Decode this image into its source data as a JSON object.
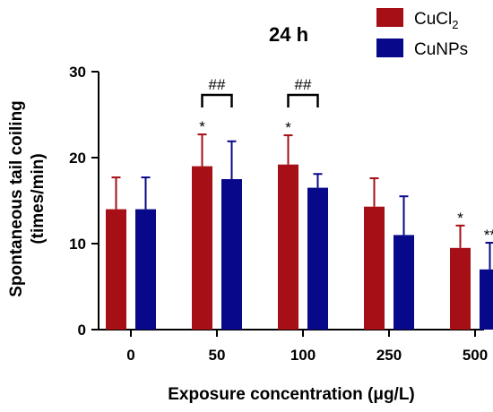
{
  "chart_data": {
    "type": "bar",
    "title": "24 h",
    "xlabel": "Exposure concentration (μg/L)",
    "ylabel_line1": "Spontaneous tail coiling",
    "ylabel_line2": "(times/min)",
    "categories": [
      "0",
      "50",
      "100",
      "250",
      "500"
    ],
    "ylim": [
      0,
      30
    ],
    "yticks": [
      "0",
      "10",
      "20",
      "30"
    ],
    "grid": false,
    "legend_position": "top-right",
    "series": [
      {
        "name": "CuCl",
        "name_subscript": "2",
        "color": "#a50f15",
        "values": [
          14.0,
          19.0,
          19.2,
          14.3,
          9.5
        ],
        "errors": [
          3.7,
          3.7,
          3.4,
          3.3,
          2.6
        ],
        "marks": [
          "",
          "*",
          "*",
          "",
          "*"
        ]
      },
      {
        "name": "CuNPs",
        "name_subscript": "",
        "color": "#08088a",
        "values": [
          14.0,
          17.5,
          16.5,
          11.0,
          7.0
        ],
        "errors": [
          3.7,
          4.4,
          1.6,
          4.5,
          3.1
        ],
        "marks": [
          "",
          "",
          "",
          "",
          "**"
        ]
      }
    ],
    "comparisons": [
      {
        "category": "50",
        "label": "##"
      },
      {
        "category": "100",
        "label": "##"
      }
    ]
  }
}
